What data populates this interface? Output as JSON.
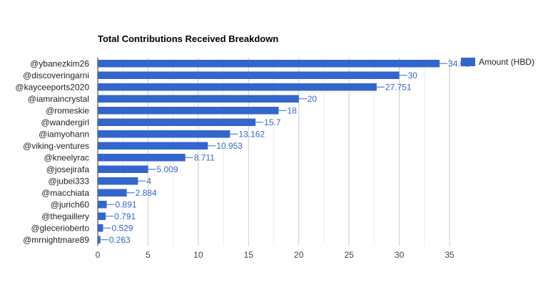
{
  "chart_data": {
    "type": "bar",
    "orientation": "horizontal",
    "title": "Total Contributions Received Breakdown",
    "xlabel": "",
    "ylabel": "",
    "xlim": [
      0,
      35
    ],
    "xticks": [
      0,
      5,
      10,
      15,
      20,
      25,
      30,
      35
    ],
    "grid": true,
    "legend": "right",
    "categories": [
      "@ybanezkim26",
      "@discoveringarni",
      "@kayceeports2020",
      "@iamraincrystal",
      "@romeskie",
      "@wandergirl",
      "@iamyohann",
      "@viking-ventures",
      "@kneelyrac",
      "@josejirafa",
      "@jubei333",
      "@macchiata",
      "@jurich60",
      "@thegaillery",
      "@glecerioberto",
      "@mrnightmare89"
    ],
    "series": [
      {
        "name": "Amount (HBD)",
        "color": "#3366cc",
        "values": [
          34.01,
          30,
          27.751,
          20,
          18,
          15.7,
          13.162,
          10.953,
          8.711,
          5.009,
          4,
          2.884,
          0.891,
          0.791,
          0.529,
          0.263
        ]
      }
    ]
  }
}
